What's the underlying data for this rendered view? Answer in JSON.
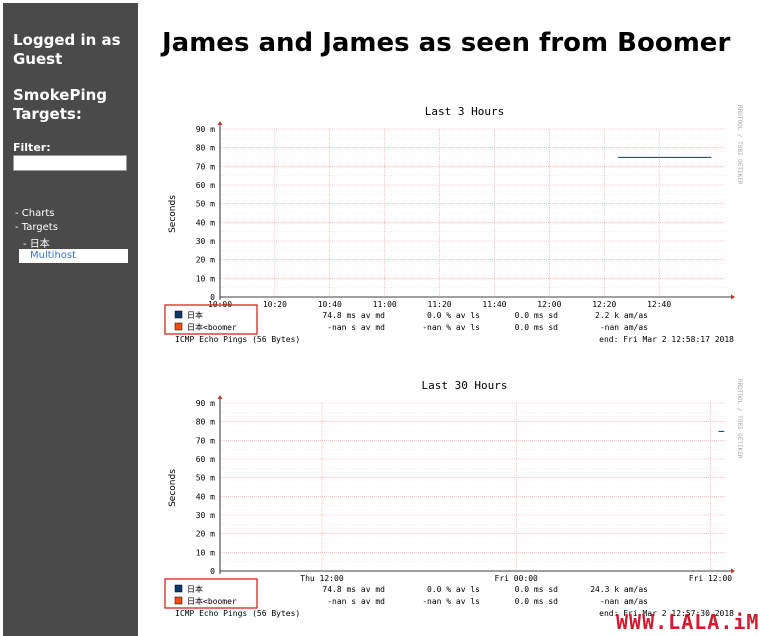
{
  "sidebar": {
    "logged_in": "Logged in as Guest",
    "logged_in_l1": "Logged in as",
    "logged_in_l2": "Guest",
    "targets_l1": "SmokePing",
    "targets_l2": "Targets:",
    "filter_label": "Filter:",
    "filter_value": "",
    "nav": {
      "charts": "- Charts",
      "targets": "- Targets",
      "target_group": "- 日本",
      "selected": "Multihost"
    }
  },
  "main": {
    "title": "James and James as seen from Boomer"
  },
  "watermark": "WWW.LALA.iM",
  "colors": {
    "sidebar_bg": "#4a4a4a",
    "grid_major": "#ff9999",
    "grid_minor": "#dddddd",
    "series_japan": "#0c3a6c",
    "series_boomer": "#ef4e13",
    "highlight_box": "#e0201e",
    "link": "#3a78c4",
    "watermark": "#d0021b"
  },
  "chart_data": [
    {
      "type": "line",
      "title": "Last 3 Hours",
      "ylabel": "Seconds",
      "ylim": [
        0,
        90
      ],
      "y_ticks": [
        "0",
        "10 m",
        "20 m",
        "30 m",
        "40 m",
        "50 m",
        "60 m",
        "70 m",
        "80 m",
        "90 m"
      ],
      "x_ticks": [
        "10:00",
        "10:20",
        "10:40",
        "11:00",
        "11:20",
        "11:40",
        "12:00",
        "12:20",
        "12:40"
      ],
      "x_range_minutes": [
        600,
        784
      ],
      "vertical_text": "RRDTOOL / TOBI OETIKER",
      "series": [
        {
          "name": "日本",
          "x_minutes": [
            745,
            779
          ],
          "y_ms": [
            74.8,
            74.8
          ]
        },
        {
          "name": "日本<boomer",
          "x_minutes": [],
          "y_ms": []
        }
      ],
      "legend": [
        {
          "name": "日本",
          "avg": "74.8 ms av md",
          "loss": "0.0 % av ls",
          "sd": "0.0 ms sd",
          "am": "2.2 k am/as"
        },
        {
          "name": "日本<boomer",
          "avg": "-nan  s av md",
          "loss": "-nan % av ls",
          "sd": "0.0 ms sd",
          "am": "-nan   am/as"
        }
      ],
      "footer_left": "ICMP Echo Pings (56 Bytes)",
      "footer_right": "end: Fri Mar  2 12:58:17 2018"
    },
    {
      "type": "line",
      "title": "Last 30 Hours",
      "ylabel": "Seconds",
      "ylim": [
        0,
        90
      ],
      "y_ticks": [
        "0",
        "10 m",
        "20 m",
        "30 m",
        "40 m",
        "50 m",
        "60 m",
        "70 m",
        "80 m",
        "90 m"
      ],
      "x_ticks": [
        "Thu 12:00",
        "Fri 00:00",
        "Fri 12:00"
      ],
      "x_range_hours": [
        -6.3,
        24.9
      ],
      "vertical_text": "RRDTOOL / TOBI OETIKER",
      "series": [
        {
          "name": "日本",
          "x_hours": [
            24.5,
            24.85
          ],
          "y_ms": [
            74.8,
            74.8
          ]
        },
        {
          "name": "日本<boomer",
          "x_hours": [],
          "y_ms": []
        }
      ],
      "legend": [
        {
          "name": "日本",
          "avg": "74.8 ms av md",
          "loss": "0.0 % av ls",
          "sd": "0.0 ms sd",
          "am": "24.3 k am/as"
        },
        {
          "name": "日本<boomer",
          "avg": "-nan  s av md",
          "loss": "-nan % av ls",
          "sd": "0.0 ms sd",
          "am": "-nan   am/as"
        }
      ],
      "footer_left": "ICMP Echo Pings (56 Bytes)",
      "footer_right": "end: Fri Mar  2 12:57:30 2018"
    }
  ]
}
